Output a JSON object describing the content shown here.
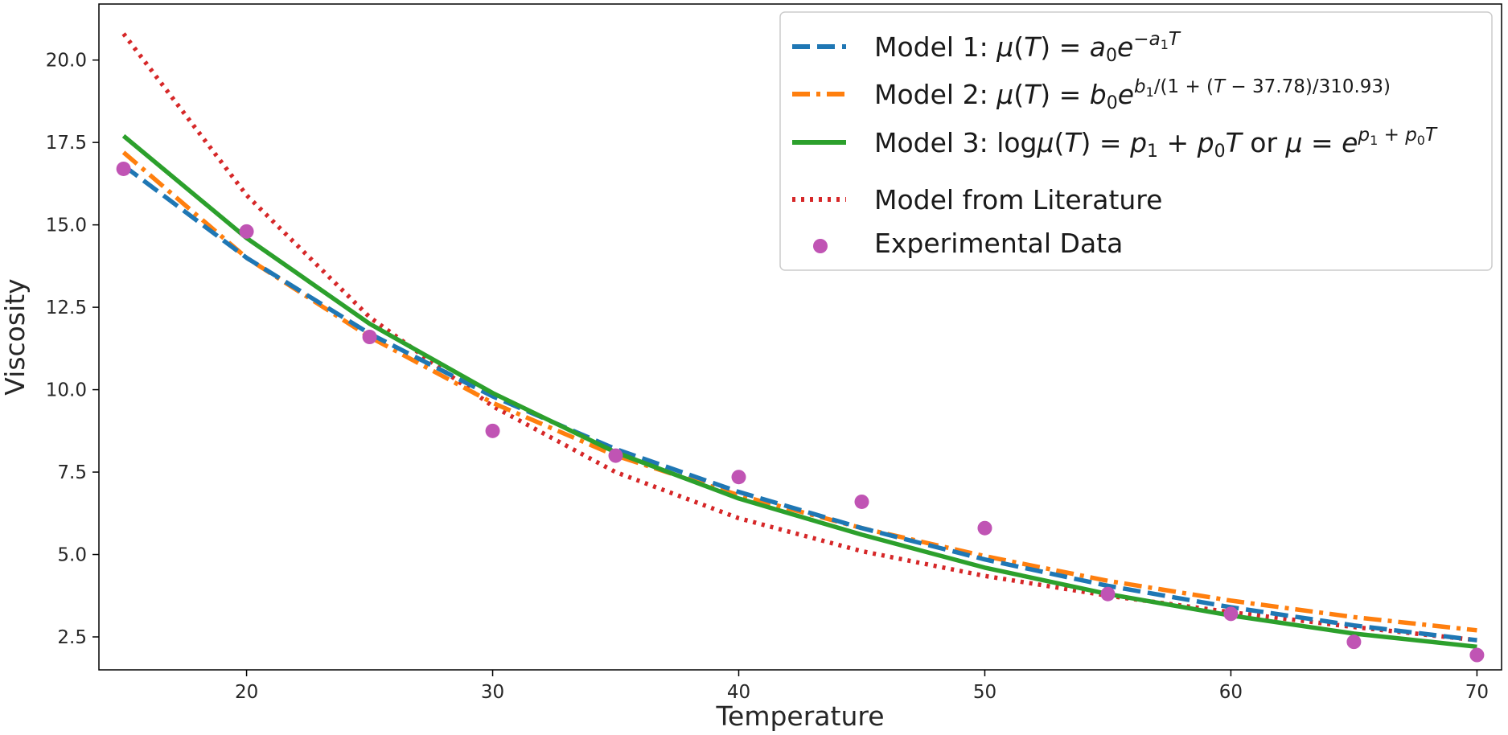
{
  "chart_data": {
    "type": "line",
    "title": "",
    "xlabel": "Temperature",
    "ylabel": "Viscosity",
    "xlim": [
      14,
      71
    ],
    "ylim": [
      1.5,
      21.7
    ],
    "xticks": [
      20,
      30,
      40,
      50,
      60,
      70
    ],
    "yticks": [
      2.5,
      5.0,
      7.5,
      10.0,
      12.5,
      15.0,
      17.5,
      20.0
    ],
    "ytick_labels": [
      "2.5",
      "5.0",
      "7.5",
      "10.0",
      "12.5",
      "15.0",
      "17.5",
      "20.0"
    ],
    "grid": false,
    "legend_position": "top-right",
    "x": [
      15,
      20,
      25,
      30,
      35,
      40,
      45,
      50,
      55,
      60,
      65,
      70
    ],
    "series": [
      {
        "name": "Model 1",
        "legend_label": "Model 1: μ(T) = a0e^(−a1T)",
        "style": "dashed",
        "color": "#1f77b4",
        "values": [
          16.8,
          14.0,
          11.7,
          9.8,
          8.2,
          6.9,
          5.8,
          4.85,
          4.05,
          3.4,
          2.85,
          2.4
        ]
      },
      {
        "name": "Model 2",
        "legend_label": "Model 2: μ(T) = b0e^(b1/(1 + (T − 37.78)/310.93))",
        "style": "dashdot",
        "color": "#ff7f0e",
        "values": [
          17.2,
          14.0,
          11.6,
          9.6,
          8.0,
          6.8,
          5.8,
          4.95,
          4.2,
          3.6,
          3.1,
          2.7
        ]
      },
      {
        "name": "Model 3",
        "legend_label": "Model 3: logμ(T) = p1 + p0T or μ = e^(p1 + p0T)",
        "style": "solid",
        "color": "#2ca02c",
        "values": [
          17.7,
          14.6,
          12.0,
          9.9,
          8.1,
          6.7,
          5.6,
          4.6,
          3.8,
          3.15,
          2.6,
          2.2
        ]
      },
      {
        "name": "Model from Literature",
        "legend_label": "Model from Literature",
        "style": "dotted",
        "color": "#d62728",
        "values": [
          20.8,
          15.9,
          12.2,
          9.5,
          7.5,
          6.1,
          5.1,
          4.35,
          3.75,
          3.25,
          2.8,
          2.4
        ]
      },
      {
        "name": "Experimental Data",
        "legend_label": "Experimental Data",
        "style": "scatter",
        "color": "#c054b4",
        "values": [
          16.7,
          14.8,
          11.6,
          8.75,
          8.0,
          7.35,
          6.6,
          5.8,
          3.8,
          3.2,
          2.35,
          1.95
        ]
      }
    ]
  },
  "legend": {
    "model1_prefix": "Model 1: ",
    "model2_prefix": "Model 2: ",
    "model3_prefix": "Model 3: ",
    "literature_label": "Model from Literature",
    "experimental_label": "Experimental Data"
  }
}
